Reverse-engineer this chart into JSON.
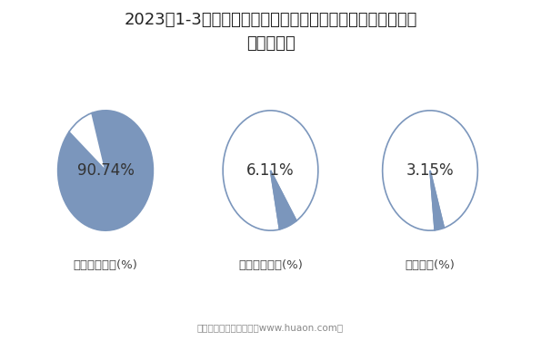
{
  "title_line1": "2023年1-3月陕西国有及国有控股建筑业工程、安装工程及其",
  "title_line2": "他产值结构",
  "charts": [
    {
      "label": "建筑工程产值(%)",
      "value": 90.74
    },
    {
      "label": "安装工程产值(%)",
      "value": 6.11
    },
    {
      "label": "其他产值(%)",
      "value": 3.15
    }
  ],
  "background_color": "#ffffff",
  "title_fontsize": 13,
  "label_fontsize": 9.5,
  "value_fontsize": 12,
  "fill_color": "#7b96bc",
  "edge_color": "#7b96bc",
  "bg_color": "#ffffff",
  "footer_text": "制图：华经产业研究院（www.huaon.com）",
  "footer_fontsize": 7.5,
  "footer_color": "#888888",
  "label_color": "#444444"
}
